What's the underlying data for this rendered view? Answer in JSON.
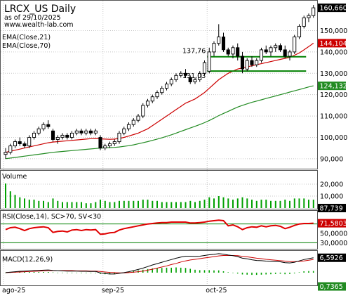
{
  "header": {
    "title": "LRCX_US Daily",
    "subtitle": "as of 29/10/2025",
    "website": "www.wealth-lab.com"
  },
  "colors": {
    "background": "#ffffff",
    "frame": "#555555",
    "grid": "#c8c8c8",
    "candle": "#000000",
    "ema21": "#cc0000",
    "ema70": "#228b22",
    "support": "#008000",
    "volume": "#00a000",
    "rsi": "#e00000",
    "rsi_band": "#008000",
    "macd": "#000000",
    "signal": "#cc0000",
    "hist": "#00a000",
    "label_bg_dark": "#000000",
    "label_bg_red": "#cc0000",
    "label_bg_green": "#228b22"
  },
  "x_axis": {
    "labels": [
      {
        "text": "ago-25",
        "index": 0
      },
      {
        "text": "sep-25",
        "index": 21
      },
      {
        "text": "oct-25",
        "index": 43
      }
    ]
  },
  "chart_data": [
    {
      "type": "candlestick",
      "name": "price",
      "legend": [
        "EMA(Close,21)",
        "EMA(Close,70)"
      ],
      "ylim": [
        86,
        163
      ],
      "y_ticks": [
        90000,
        100000,
        110000,
        120000,
        130000,
        140000,
        150000
      ],
      "y_tick_labels": [
        "90,000",
        "100,000",
        "110,000",
        "120,000",
        "130,000",
        "140,000",
        "150,000"
      ],
      "last_price_label": "160,660",
      "ema21_label": "144,104",
      "ema70_label": "124,132",
      "support_levels": [
        {
          "label": "137,76",
          "value": 137.76,
          "from_index": 43,
          "to_index": 63
        },
        {
          "label": "131,03",
          "value": 131.03,
          "from_index": 43,
          "to_index": 63
        }
      ],
      "ohlc": [
        [
          92,
          95,
          90,
          93
        ],
        [
          93,
          97,
          92,
          96
        ],
        [
          96,
          99,
          95,
          98
        ],
        [
          98,
          100,
          96,
          97
        ],
        [
          97,
          98,
          95,
          96
        ],
        [
          96,
          101,
          95,
          100
        ],
        [
          100,
          103,
          99,
          102
        ],
        [
          102,
          105,
          101,
          104
        ],
        [
          104,
          107,
          103,
          106
        ],
        [
          106,
          108,
          104,
          105
        ],
        [
          103,
          104,
          98,
          99
        ],
        [
          99,
          101,
          97,
          100
        ],
        [
          100,
          102,
          99,
          101
        ],
        [
          101,
          102,
          99,
          100
        ],
        [
          100,
          103,
          99,
          102
        ],
        [
          102,
          104,
          101,
          103
        ],
        [
          103,
          104,
          101,
          102
        ],
        [
          102,
          104,
          101,
          103
        ],
        [
          103,
          104,
          101,
          102
        ],
        [
          102,
          104,
          101,
          103
        ],
        [
          100,
          101,
          94,
          95
        ],
        [
          95,
          97,
          94,
          96
        ],
        [
          96,
          98,
          95,
          97
        ],
        [
          97,
          99,
          96,
          98
        ],
        [
          98,
          103,
          97,
          102
        ],
        [
          102,
          105,
          101,
          104
        ],
        [
          104,
          107,
          103,
          106
        ],
        [
          106,
          109,
          105,
          108
        ],
        [
          108,
          111,
          107,
          110
        ],
        [
          110,
          116,
          109,
          115
        ],
        [
          115,
          118,
          114,
          117
        ],
        [
          117,
          120,
          116,
          119
        ],
        [
          119,
          122,
          118,
          121
        ],
        [
          121,
          124,
          120,
          123
        ],
        [
          123,
          126,
          122,
          125
        ],
        [
          125,
          128,
          124,
          127
        ],
        [
          127,
          130,
          126,
          129
        ],
        [
          129,
          131,
          128,
          130
        ],
        [
          130,
          132,
          128,
          129
        ],
        [
          128,
          129,
          125,
          126
        ],
        [
          126,
          128,
          125,
          127
        ],
        [
          127,
          131,
          126,
          130
        ],
        [
          130,
          136,
          129,
          135
        ],
        [
          131,
          142,
          130,
          140
        ],
        [
          140,
          145,
          138,
          144
        ],
        [
          144,
          153,
          143,
          147
        ],
        [
          147,
          149,
          140,
          141
        ],
        [
          141,
          142,
          138,
          139
        ],
        [
          139,
          143,
          137,
          142
        ],
        [
          142,
          144,
          136,
          138
        ],
        [
          138,
          140,
          130,
          132
        ],
        [
          132,
          137,
          131,
          136
        ],
        [
          136,
          138,
          133,
          134
        ],
        [
          134,
          137,
          133,
          136
        ],
        [
          136,
          142,
          135,
          141
        ],
        [
          141,
          143,
          139,
          140
        ],
        [
          140,
          143,
          138,
          142
        ],
        [
          142,
          144,
          140,
          143
        ],
        [
          143,
          144,
          140,
          141
        ],
        [
          141,
          143,
          137,
          138
        ],
        [
          138,
          141,
          136,
          140
        ],
        [
          140,
          148,
          139,
          147
        ],
        [
          147,
          153,
          146,
          152
        ],
        [
          152,
          157,
          151,
          156
        ],
        [
          156,
          158,
          154,
          157
        ],
        [
          157,
          162,
          156,
          160.66
        ]
      ],
      "ema21": [
        93,
        93.5,
        94,
        94.5,
        95,
        95.5,
        96,
        96.5,
        97,
        97.5,
        97.8,
        98,
        98.2,
        98.4,
        98.6,
        98.8,
        99,
        99.2,
        99.4,
        99.5,
        99.3,
        99.2,
        99.1,
        99.2,
        99.5,
        100,
        100.6,
        101.3,
        102,
        103,
        104,
        105.5,
        107,
        108.5,
        110,
        111.5,
        113,
        114.5,
        116,
        117,
        118,
        119.5,
        121,
        123,
        125,
        127,
        128.5,
        130,
        131,
        132,
        132.5,
        133,
        133.5,
        134,
        134.5,
        135,
        135.5,
        136,
        136.5,
        137,
        137.5,
        138.5,
        139.5,
        141,
        142.5,
        144.1
      ],
      "ema70": [
        90,
        90.3,
        90.6,
        90.9,
        91.2,
        91.5,
        91.8,
        92.1,
        92.4,
        92.7,
        93,
        93.2,
        93.4,
        93.6,
        93.8,
        94,
        94.2,
        94.4,
        94.6,
        94.8,
        95,
        95.1,
        95.2,
        95.3,
        95.5,
        95.8,
        96.1,
        96.5,
        97,
        97.5,
        98,
        98.6,
        99.2,
        99.8,
        100.5,
        101.2,
        102,
        102.8,
        103.6,
        104.4,
        105.2,
        106,
        106.9,
        107.9,
        109,
        110.2,
        111.2,
        112.2,
        113.2,
        114.2,
        115,
        115.7,
        116.4,
        117,
        117.6,
        118.2,
        118.8,
        119.4,
        120,
        120.6,
        121.2,
        121.8,
        122.4,
        123,
        123.6,
        124.13
      ]
    },
    {
      "type": "bar",
      "name": "volume",
      "title": "Volume",
      "ylim": [
        0,
        30
      ],
      "y_ticks": [
        10,
        20
      ],
      "y_tick_labels": [
        "10,000",
        "20,000"
      ],
      "last_label": "87,739",
      "values": [
        20.5,
        14,
        11,
        9,
        8,
        7,
        7,
        6,
        6,
        5,
        8,
        6,
        5,
        5,
        5,
        5,
        5,
        4,
        4,
        5,
        7,
        6,
        5,
        5,
        6,
        6,
        6,
        6,
        6,
        7,
        7,
        6,
        6,
        5,
        5,
        5,
        5,
        5,
        5,
        6,
        5,
        6,
        7,
        9,
        8,
        10,
        9,
        8,
        7,
        8,
        9,
        8,
        7,
        6,
        7,
        7,
        6,
        6,
        6,
        7,
        6,
        8,
        8,
        8,
        7,
        7
      ]
    },
    {
      "type": "line",
      "name": "rsi",
      "title": "RSI(Close,14), SC>70, SV<30",
      "ylim": [
        20,
        95
      ],
      "y_ticks": [
        30,
        50
      ],
      "y_tick_labels": [
        "30,0000",
        "50,0000"
      ],
      "bands": [
        30,
        70
      ],
      "last_label": "71,5803",
      "values": [
        58,
        62,
        63,
        60,
        56,
        60,
        62,
        63,
        64,
        62,
        52,
        54,
        55,
        53,
        57,
        58,
        56,
        58,
        57,
        58,
        48,
        49,
        51,
        52,
        57,
        60,
        62,
        64,
        66,
        68,
        70,
        71,
        72,
        73,
        73,
        74,
        74,
        74,
        74,
        72,
        72,
        73,
        74,
        76,
        77,
        78,
        77,
        66,
        68,
        64,
        58,
        62,
        64,
        63,
        66,
        64,
        66,
        67,
        65,
        60,
        63,
        67,
        70,
        71,
        71,
        71.58
      ]
    },
    {
      "type": "line",
      "name": "macd",
      "title": "MACD(12,26,9)",
      "ylim": [
        -5,
        9
      ],
      "last_label_macd": "6,5926",
      "last_label_hist": "0,7365",
      "macd": [
        0,
        0.2,
        0.4,
        0.6,
        0.7,
        0.8,
        0.9,
        1,
        1.1,
        1.2,
        1,
        0.9,
        0.8,
        0.7,
        0.7,
        0.7,
        0.6,
        0.6,
        0.5,
        0.5,
        -0.1,
        -0.4,
        -0.6,
        -0.6,
        -0.3,
        0,
        0.4,
        0.9,
        1.4,
        2,
        2.7,
        3.4,
        4,
        4.6,
        5.2,
        5.8,
        6.4,
        6.9,
        7.3,
        7.3,
        7.2,
        7.3,
        7.6,
        7.9,
        8.1,
        8.4,
        8.2,
        7.8,
        7.5,
        7.1,
        6.4,
        6.1,
        5.7,
        5.4,
        5.3,
        5.1,
        5,
        4.9,
        4.8,
        4.4,
        4.3,
        4.6,
        5.2,
        5.8,
        6.2,
        6.59
      ],
      "signal": [
        0,
        0.1,
        0.2,
        0.3,
        0.4,
        0.5,
        0.6,
        0.7,
        0.8,
        0.9,
        0.9,
        0.9,
        0.9,
        0.9,
        0.9,
        0.8,
        0.8,
        0.8,
        0.7,
        0.7,
        0.5,
        0.3,
        0.1,
        0,
        -0.1,
        -0.1,
        0,
        0.2,
        0.4,
        0.7,
        1.1,
        1.5,
        2,
        2.5,
        3,
        3.6,
        4.1,
        4.7,
        5.2,
        5.6,
        5.9,
        6.2,
        6.5,
        6.8,
        7.1,
        7.4,
        7.6,
        7.6,
        7.6,
        7.5,
        7.2,
        7,
        6.7,
        6.4,
        6.2,
        5.9,
        5.7,
        5.5,
        5.3,
        5.1,
        4.9,
        4.9,
        5,
        5.2,
        5.5,
        5.85
      ],
      "hist": [
        0,
        0.1,
        0.2,
        0.3,
        0.3,
        0.3,
        0.3,
        0.3,
        0.3,
        0.3,
        0.1,
        0,
        -0.1,
        -0.2,
        -0.2,
        -0.1,
        -0.2,
        -0.2,
        -0.2,
        -0.2,
        -0.6,
        -0.7,
        -0.7,
        -0.6,
        -0.2,
        0.1,
        0.4,
        0.7,
        1,
        1.3,
        1.6,
        1.9,
        2,
        2.1,
        2.2,
        2.2,
        2.3,
        2.2,
        2.1,
        1.7,
        1.3,
        1.1,
        1.1,
        1.1,
        1,
        1,
        0.6,
        0.2,
        -0.1,
        -0.4,
        -0.8,
        -0.9,
        -1,
        -1,
        -0.9,
        -0.8,
        -0.7,
        -0.6,
        -0.5,
        -0.7,
        -0.6,
        -0.3,
        0.2,
        0.6,
        0.7,
        0.74
      ]
    }
  ]
}
